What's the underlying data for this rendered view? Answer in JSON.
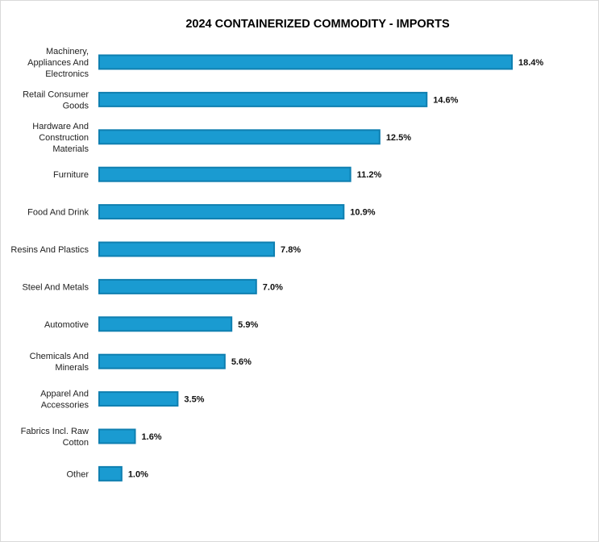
{
  "chart_data": {
    "type": "bar",
    "orientation": "horizontal",
    "title": "2024 CONTAINERIZED COMMODITY - IMPORTS",
    "categories": [
      [
        "Machinery,",
        "Appliances And",
        "Electronics"
      ],
      [
        "Retail Consumer",
        "Goods"
      ],
      [
        "Hardware And",
        "Construction",
        "Materials"
      ],
      [
        "Furniture"
      ],
      [
        "Food And Drink"
      ],
      [
        "Resins And Plastics"
      ],
      [
        "Steel And Metals"
      ],
      [
        "Automotive"
      ],
      [
        "Chemicals And",
        "Minerals"
      ],
      [
        "Apparel And",
        "Accessories"
      ],
      [
        "Fabrics Incl. Raw",
        "Cotton"
      ],
      [
        "Other"
      ]
    ],
    "values": [
      18.4,
      14.6,
      12.5,
      11.2,
      10.9,
      7.8,
      7.0,
      5.9,
      5.6,
      3.5,
      1.6,
      1.0
    ],
    "value_labels": [
      "18.4%",
      "14.6%",
      "12.5%",
      "11.2%",
      "10.9%",
      "7.8%",
      "7.0%",
      "5.9%",
      "5.6%",
      "3.5%",
      "1.6%",
      "1.0%"
    ],
    "unit": "%",
    "bar_color": "#1a9bd1",
    "bar_edge_color": "#0f7fb0",
    "xlim": [
      0,
      18.4
    ],
    "grid": false,
    "legend": "none"
  }
}
